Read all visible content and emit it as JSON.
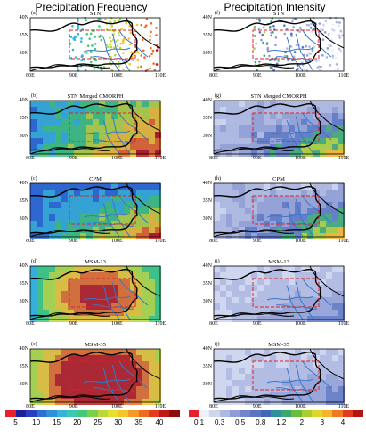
{
  "columns": [
    {
      "title": "Precipitation Frequency",
      "panels": [
        {
          "label": "(a)",
          "title": "STN",
          "style": "stn-freq"
        },
        {
          "label": "(b)",
          "title": "STN Merged CMORPH",
          "style": "cmorph-freq"
        },
        {
          "label": "(c)",
          "title": "CPM",
          "style": "cpm-freq"
        },
        {
          "label": "(d)",
          "title": "MSM-13",
          "style": "msm13-freq"
        },
        {
          "label": "(e)",
          "title": "MSM-35",
          "style": "msm35-freq"
        }
      ],
      "colorbar": {
        "ticks": [
          "5",
          "10",
          "15",
          "20",
          "25",
          "30",
          "35",
          "40"
        ],
        "colors": [
          "#e8202a",
          "#1e1f9b",
          "#2a3fbf",
          "#2f6fd2",
          "#2f8fd9",
          "#36b4d8",
          "#3cc9b1",
          "#42c97a",
          "#7ccf4a",
          "#b7da3a",
          "#e5df2f",
          "#f5c62b",
          "#f59a26",
          "#ef6a22",
          "#e53a1f",
          "#c01717",
          "#8d0d0d"
        ]
      }
    },
    {
      "title": "Precipitation Intensity",
      "panels": [
        {
          "label": "(f)",
          "title": "STN",
          "style": "stn-int"
        },
        {
          "label": "(g)",
          "title": "STN Merged CMORPH",
          "style": "cmorph-int"
        },
        {
          "label": "(h)",
          "title": "CPM",
          "style": "cpm-int"
        },
        {
          "label": "(i)",
          "title": "MSM-13",
          "style": "msm13-int"
        },
        {
          "label": "(j)",
          "title": "MSM-35",
          "style": "msm35-int"
        }
      ],
      "colorbar": {
        "ticks": [
          "0.1",
          "0.3",
          "0.5",
          "0.8",
          "1.2",
          "2",
          "3",
          "4"
        ],
        "colors": [
          "#e8202a",
          "#eef0f8",
          "#cfd6ee",
          "#aeb9e2",
          "#8f9dd6",
          "#7285cb",
          "#5b74c2",
          "#3f67b8",
          "#2f8fa0",
          "#3aa86e",
          "#6cbd3b",
          "#a8cf31",
          "#dfd62c",
          "#f5b52a",
          "#f07a24",
          "#e3391f",
          "#b3160f"
        ]
      }
    }
  ],
  "axes": {
    "lon_ticks": [
      "80E",
      "90E",
      "100E",
      "110E"
    ],
    "lat_ticks": [
      "40N",
      "35N",
      "30N"
    ],
    "lat_ticks_lower": [
      "40N",
      "35N",
      "30N"
    ]
  },
  "colors": {
    "border": "#000000",
    "rivers": "#3a78c8",
    "box": "#e32020"
  }
}
